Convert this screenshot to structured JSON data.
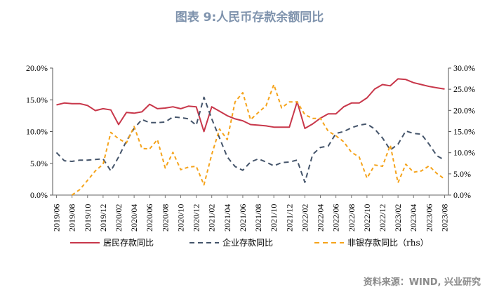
{
  "title": "图表 9:人民币存款余额同比",
  "source": "资料来源：WIND, 兴业研究",
  "chart_data": {
    "type": "line",
    "title": "图表 9:人民币存款余额同比",
    "x": [
      "2019/06",
      "2019/07",
      "2019/08",
      "2019/09",
      "2019/10",
      "2019/11",
      "2019/12",
      "2020/01",
      "2020/02",
      "2020/03",
      "2020/04",
      "2020/05",
      "2020/06",
      "2020/07",
      "2020/08",
      "2020/09",
      "2020/10",
      "2020/11",
      "2020/12",
      "2021/01",
      "2021/02",
      "2021/03",
      "2021/04",
      "2021/05",
      "2021/06",
      "2021/07",
      "2021/08",
      "2021/09",
      "2021/10",
      "2021/11",
      "2021/12",
      "2022/01",
      "2022/02",
      "2022/03",
      "2022/04",
      "2022/05",
      "2022/06",
      "2022/07",
      "2022/08",
      "2022/09",
      "2022/10",
      "2022/11",
      "2022/12",
      "2023/01",
      "2023/02",
      "2023/03",
      "2023/04",
      "2023/05",
      "2023/06",
      "2023/07",
      "2023/08"
    ],
    "xtick_labels": [
      "2019/06",
      "2019/08",
      "2019/10",
      "2019/12",
      "2020/02",
      "2020/04",
      "2020/06",
      "2020/08",
      "2020/10",
      "2020/12",
      "2021/02",
      "2021/04",
      "2021/06",
      "2021/08",
      "2021/10",
      "2021/12",
      "2022/02",
      "2022/04",
      "2022/06",
      "2022/08",
      "2022/10",
      "2022/12",
      "2023/02",
      "2023/04",
      "2023/06",
      "2023/08"
    ],
    "left_axis": {
      "ylim": [
        0,
        20
      ],
      "ticks": [
        "0.0%",
        "5.0%",
        "10.0%",
        "15.0%",
        "20.0%"
      ]
    },
    "right_axis": {
      "ylim": [
        0,
        30
      ],
      "ticks": [
        "0.0%",
        "5.0%",
        "10.0%",
        "15.0%",
        "20.0%",
        "25.0%",
        "30.0%"
      ]
    },
    "legend_position": "bottom",
    "series": [
      {
        "name": "居民存款同比",
        "axis": "left",
        "style": "solid",
        "color": "#c8374a",
        "values": [
          14.2,
          14.5,
          14.4,
          14.4,
          14.1,
          13.3,
          13.6,
          13.4,
          11.1,
          13.0,
          12.9,
          13.1,
          14.3,
          13.6,
          13.7,
          13.9,
          13.6,
          14.0,
          13.9,
          10.0,
          13.9,
          13.2,
          12.5,
          12.0,
          11.7,
          11.1,
          11.0,
          10.9,
          10.7,
          10.7,
          10.7,
          14.7,
          10.5,
          11.2,
          12.1,
          12.8,
          12.8,
          13.9,
          14.5,
          14.5,
          15.3,
          16.7,
          17.4,
          17.2,
          18.3,
          18.2,
          17.7,
          17.4,
          17.1,
          16.9,
          16.7
        ]
      },
      {
        "name": "企业存款同比",
        "axis": "left",
        "style": "dashed",
        "color": "#44546a",
        "values": [
          6.7,
          5.4,
          5.3,
          5.5,
          5.5,
          5.6,
          5.7,
          3.8,
          6.0,
          8.5,
          10.5,
          11.9,
          11.4,
          11.4,
          11.5,
          12.3,
          12.2,
          12.0,
          11.0,
          15.4,
          12.0,
          9.0,
          6.0,
          4.5,
          3.9,
          5.2,
          5.7,
          5.2,
          4.6,
          5.1,
          5.2,
          5.5,
          2.0,
          6.4,
          7.5,
          7.7,
          9.7,
          10.0,
          10.6,
          11.0,
          11.2,
          10.4,
          9.0,
          7.1,
          8.0,
          10.1,
          9.7,
          9.6,
          8.0,
          6.2,
          5.5
        ]
      },
      {
        "name": "非银存款同比（rhs）",
        "axis": "right",
        "style": "dashed",
        "color": "#f5a31a",
        "values": [
          null,
          null,
          0.0,
          1.3,
          3.5,
          5.7,
          7.3,
          14.8,
          13.3,
          12.3,
          16.2,
          11.0,
          10.9,
          13.1,
          6.4,
          10.1,
          6.0,
          6.6,
          6.8,
          2.4,
          9.6,
          15.6,
          13.1,
          22.0,
          24.2,
          17.8,
          19.5,
          21.1,
          26.1,
          20.6,
          22.0,
          22.0,
          19.0,
          18.1,
          18.1,
          15.1,
          14.0,
          12.6,
          10.1,
          9.0,
          4.0,
          7.1,
          6.8,
          11.8,
          2.9,
          7.3,
          5.4,
          5.7,
          6.9,
          5.1,
          3.8
        ]
      }
    ]
  }
}
